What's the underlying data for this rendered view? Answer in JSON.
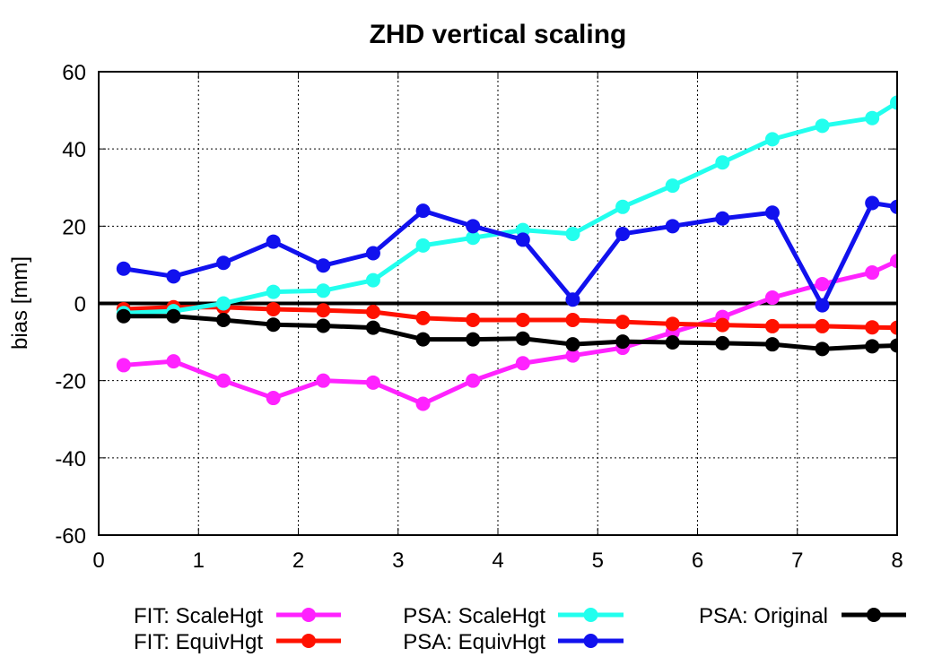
{
  "chart_data": {
    "type": "line",
    "title": "ZHD vertical scaling",
    "xlabel": "",
    "ylabel": "bias [mm]",
    "xlim": [
      0,
      8
    ],
    "ylim": [
      -60,
      60
    ],
    "xticks": [
      0,
      1,
      2,
      3,
      4,
      5,
      6,
      7,
      8
    ],
    "yticks": [
      -60,
      -40,
      -20,
      0,
      20,
      40,
      60
    ],
    "grid": true,
    "reference_line_y": 0,
    "legend_placement": "bottom",
    "series": [
      {
        "name": "FIT: ScaleHgt",
        "color": "#ff22ff",
        "x": [
          0.25,
          0.75,
          1.25,
          1.75,
          2.25,
          2.75,
          3.25,
          3.75,
          4.25,
          4.75,
          5.25,
          5.75,
          6.25,
          6.75,
          7.25,
          7.75,
          8.0
        ],
        "y": [
          -16,
          -15,
          -20,
          -24.5,
          -20,
          -20.5,
          -26,
          -20,
          -15.5,
          -13.5,
          -11.5,
          -7.5,
          -3.5,
          1.5,
          5,
          8,
          11
        ]
      },
      {
        "name": "FIT: EquivHgt",
        "color": "#ff1100",
        "x": [
          0.25,
          0.75,
          1.25,
          1.75,
          2.25,
          2.75,
          3.25,
          3.75,
          4.25,
          4.75,
          5.25,
          5.75,
          6.25,
          6.75,
          7.25,
          7.75,
          8.0
        ],
        "y": [
          -1.5,
          -1,
          -1,
          -1.5,
          -1.8,
          -2.2,
          -3.8,
          -4.3,
          -4.3,
          -4.3,
          -4.8,
          -5.3,
          -5.6,
          -5.9,
          -5.9,
          -6.2,
          -6.3
        ]
      },
      {
        "name": "PSA: ScaleHgt",
        "color": "#22ffee",
        "x": [
          0.25,
          0.75,
          1.25,
          1.75,
          2.25,
          2.75,
          3.25,
          3.75,
          4.25,
          4.75,
          5.25,
          5.75,
          6.25,
          6.75,
          7.25,
          7.75,
          8.0
        ],
        "y": [
          -2.5,
          -2,
          0,
          3,
          3.3,
          6,
          15,
          17,
          19,
          18,
          25,
          30.5,
          36.5,
          42.5,
          46,
          48,
          52
        ]
      },
      {
        "name": "PSA: EquivHgt",
        "color": "#1111ee",
        "x": [
          0.25,
          0.75,
          1.25,
          1.75,
          2.25,
          2.75,
          3.25,
          3.75,
          4.25,
          4.75,
          5.25,
          5.75,
          6.25,
          6.75,
          7.25,
          7.75,
          8.0
        ],
        "y": [
          9,
          7,
          10.5,
          16,
          9.8,
          13,
          24,
          20,
          16.5,
          1,
          18,
          20,
          22,
          23.5,
          -0.5,
          26,
          25
        ]
      },
      {
        "name": "PSA: Original",
        "color": "#000000",
        "x": [
          0.25,
          0.75,
          1.25,
          1.75,
          2.25,
          2.75,
          3.25,
          3.75,
          4.25,
          4.75,
          5.25,
          5.75,
          6.25,
          6.75,
          7.25,
          7.75,
          8.0
        ],
        "y": [
          -3.3,
          -3.3,
          -4.3,
          -5.5,
          -5.8,
          -6.3,
          -9.3,
          -9.3,
          -9.1,
          -10.6,
          -9.9,
          -10.1,
          -10.3,
          -10.6,
          -11.8,
          -11.1,
          -10.9
        ]
      }
    ]
  }
}
